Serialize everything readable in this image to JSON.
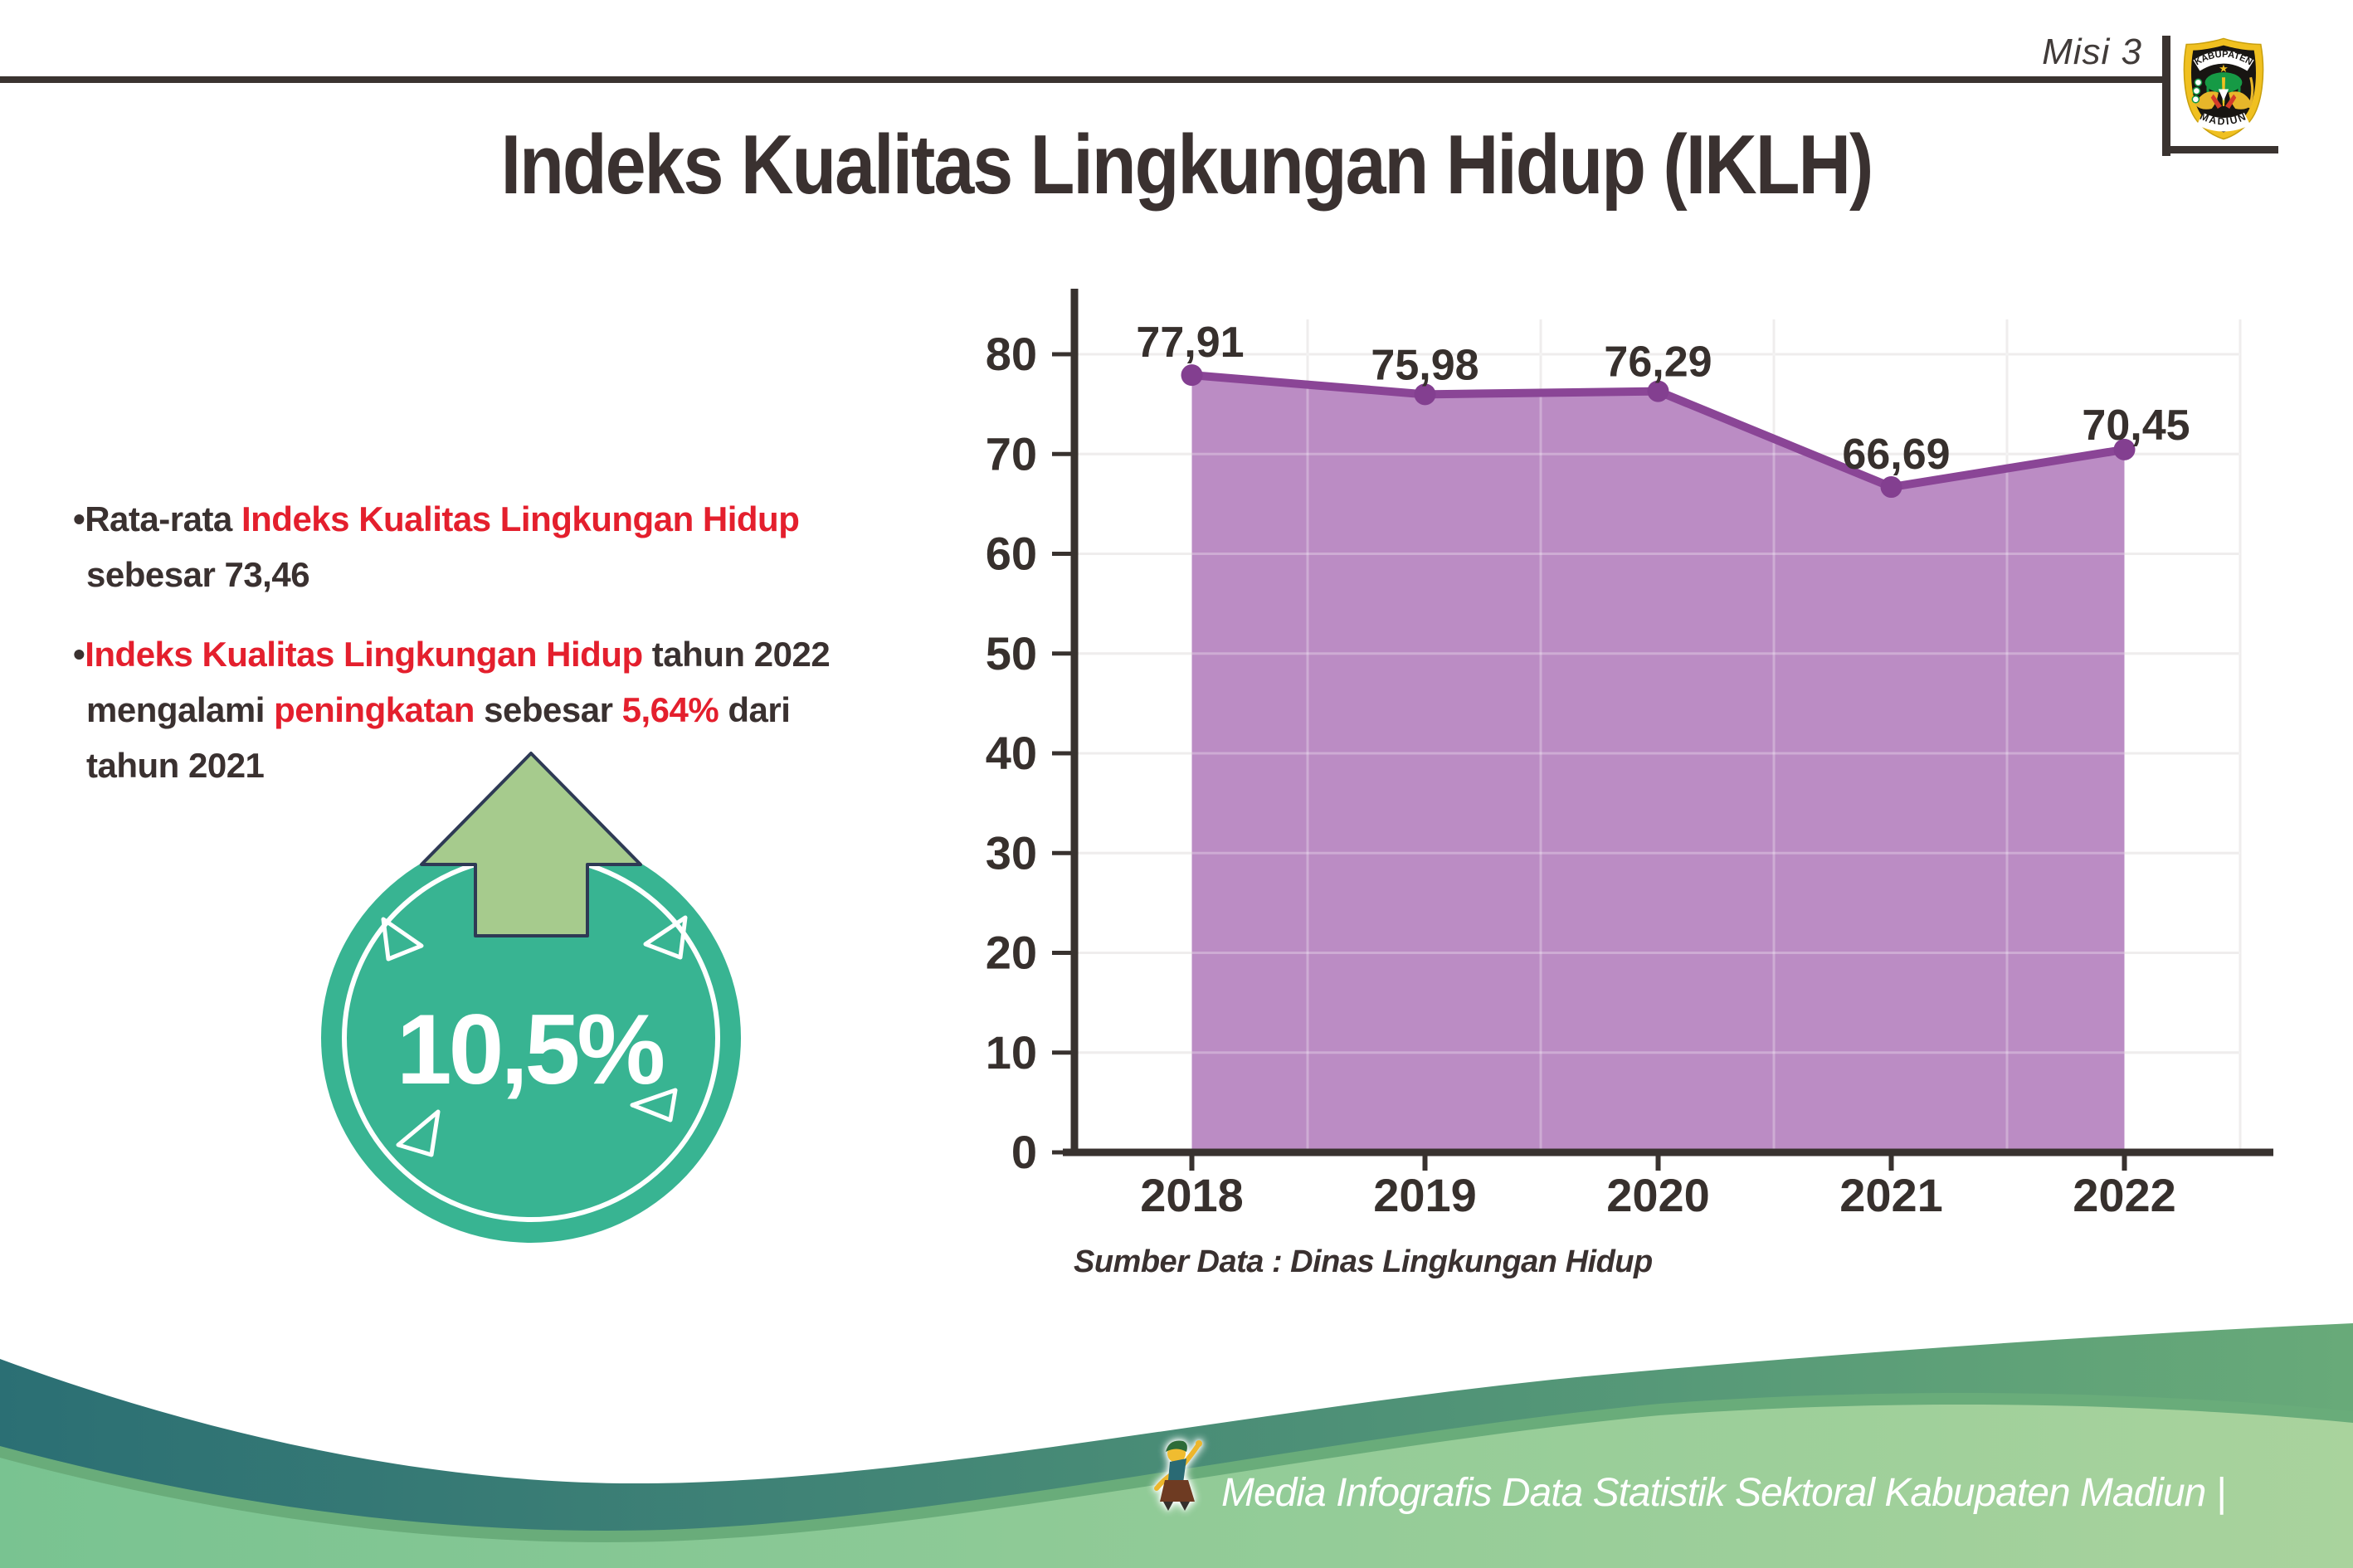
{
  "header": {
    "misi_label": "Misi 3",
    "logo": {
      "top_text": "KABUPATEN",
      "bottom_text": "MADIUN"
    }
  },
  "title": "Indeks Kualitas Lingkungan Hidup (IKLH)",
  "insights": [
    {
      "lines": [
        [
          {
            "text": "•",
            "color": "dark"
          },
          {
            "text": "Rata-rata ",
            "color": "dark"
          },
          {
            "text": "Indeks Kualitas Lingkungan Hidup",
            "color": "red"
          }
        ],
        [
          {
            "text": "sebesar 73,46",
            "color": "dark"
          }
        ]
      ]
    },
    {
      "lines": [
        [
          {
            "text": "•",
            "color": "dark"
          },
          {
            "text": "Indeks Kualitas Lingkungan Hidup",
            "color": "red"
          },
          {
            "text": " tahun 2022",
            "color": "dark"
          }
        ],
        [
          {
            "text": "mengalami ",
            "color": "dark"
          },
          {
            "text": "peningkatan",
            "color": "red"
          },
          {
            "text": " sebesar ",
            "color": "dark"
          },
          {
            "text": "5,64%",
            "color": "red"
          },
          {
            "text": " dari",
            "color": "dark"
          }
        ],
        [
          {
            "text": "tahun 2021",
            "color": "dark"
          }
        ]
      ]
    }
  ],
  "badge": {
    "value": "10,5%",
    "direction": "up"
  },
  "chart_data": {
    "type": "area",
    "title": "",
    "categories": [
      "2018",
      "2019",
      "2020",
      "2021",
      "2022"
    ],
    "values": [
      77.91,
      75.98,
      76.29,
      66.69,
      70.45
    ],
    "point_labels": [
      "77,91",
      "75,98",
      "76,29",
      "66,69",
      "70,45"
    ],
    "yticks": [
      0,
      10,
      20,
      30,
      40,
      50,
      60,
      70,
      80
    ],
    "ytick_labels": [
      "0",
      "10",
      "20",
      "30",
      "40",
      "50",
      "60",
      "70",
      "80"
    ],
    "ylim": [
      0,
      85
    ],
    "grid": true,
    "legend_position": "none",
    "xlabel": "",
    "ylabel": "",
    "colors": {
      "line": "#8a4596",
      "fill": "#bb8cc4",
      "marker": "#833f90",
      "axis": "#38322f",
      "grid": "#e9e6e6",
      "label": "#37302d"
    },
    "source_note": "Sumber Data : Dinas Lingkungan Hidup"
  },
  "footer": {
    "credit": "Media Infografis Data Statistik Sektoral Kabupaten Madiun |"
  }
}
